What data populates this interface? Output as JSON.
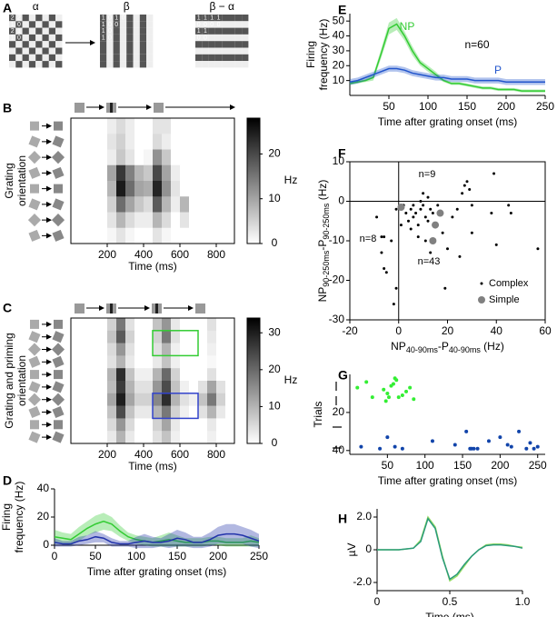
{
  "panel_letters": [
    "A",
    "B",
    "C",
    "D",
    "E",
    "F",
    "G",
    "H"
  ],
  "panel_a": {
    "grids": [
      {
        "title": "α",
        "pattern": "checker",
        "cells": [
          [
            "2",
            "2"
          ],
          [
            "1",
            "0"
          ],
          [
            "2",
            "1"
          ],
          [
            "1",
            "0"
          ]
        ]
      },
      {
        "title": "β",
        "pattern": "vertical",
        "cells": [
          [
            "1",
            "0",
            "1",
            "0"
          ],
          [
            "1",
            "0",
            "0"
          ],
          [
            "1",
            "0"
          ],
          [
            "1",
            "0"
          ]
        ]
      },
      {
        "title": "β − α",
        "pattern": "horizontal",
        "cells": [
          [
            "1",
            "1",
            "1",
            "1"
          ],
          [
            "0",
            "0",
            "0",
            "0"
          ],
          [
            "1",
            "1"
          ],
          [
            "0",
            "0"
          ]
        ]
      }
    ]
  },
  "chart_data": [
    {
      "type": "heatmap",
      "ylabel": [
        "Grating",
        "orientation"
      ],
      "xlabel": "Time (ms)",
      "xlim": [
        0,
        900
      ],
      "xticks": [
        200,
        400,
        600,
        800
      ],
      "bins": [
        0,
        50,
        100,
        150,
        200,
        250,
        300,
        350,
        400,
        450,
        500,
        550,
        600,
        650,
        700,
        750,
        800,
        850,
        900
      ],
      "z": [
        [
          0,
          0,
          0,
          0,
          2,
          4,
          2,
          0,
          0,
          3,
          3,
          0,
          0,
          0,
          0,
          0,
          0,
          0
        ],
        [
          0,
          0,
          0,
          0,
          3,
          5,
          2,
          0,
          0,
          4,
          2,
          0,
          0,
          0,
          0,
          0,
          0,
          0
        ],
        [
          0,
          0,
          0,
          0,
          2,
          6,
          3,
          0,
          1,
          12,
          6,
          0,
          0,
          0,
          0,
          0,
          0,
          0
        ],
        [
          0,
          0,
          0,
          0,
          10,
          22,
          14,
          8,
          6,
          20,
          10,
          2,
          0,
          0,
          0,
          0,
          0,
          0
        ],
        [
          0,
          0,
          0,
          0,
          8,
          25,
          16,
          10,
          9,
          24,
          12,
          3,
          0,
          0,
          0,
          0,
          0,
          0
        ],
        [
          0,
          0,
          0,
          0,
          5,
          16,
          10,
          6,
          4,
          18,
          8,
          2,
          8,
          0,
          0,
          0,
          0,
          0
        ],
        [
          0,
          0,
          0,
          0,
          3,
          8,
          4,
          2,
          2,
          8,
          4,
          0,
          3,
          0,
          0,
          0,
          0,
          0
        ],
        [
          0,
          0,
          0,
          0,
          1,
          3,
          1,
          0,
          0,
          3,
          1,
          0,
          0,
          0,
          0,
          0,
          0,
          0
        ]
      ],
      "colorbar": {
        "label": "Hz",
        "lim": [
          0,
          28
        ],
        "ticks": [
          0,
          10,
          20
        ]
      }
    },
    {
      "type": "heatmap",
      "ylabel": [
        "Grating and priming",
        "orientation"
      ],
      "xlabel": "Time (ms)",
      "xlim": [
        0,
        900
      ],
      "xticks": [
        200,
        400,
        600,
        800
      ],
      "bins": [
        0,
        50,
        100,
        150,
        200,
        250,
        300,
        350,
        400,
        450,
        500,
        550,
        600,
        650,
        700,
        750,
        800,
        850,
        900
      ],
      "z": [
        [
          0,
          0,
          0,
          0,
          6,
          18,
          4,
          0,
          0,
          8,
          14,
          3,
          0,
          0,
          0,
          4,
          0,
          0
        ],
        [
          0,
          0,
          0,
          0,
          8,
          22,
          6,
          0,
          0,
          6,
          18,
          4,
          0,
          0,
          0,
          3,
          0,
          0
        ],
        [
          0,
          0,
          0,
          0,
          5,
          14,
          4,
          0,
          0,
          4,
          10,
          2,
          0,
          0,
          0,
          2,
          0,
          0
        ],
        [
          0,
          0,
          0,
          0,
          4,
          10,
          3,
          0,
          0,
          3,
          8,
          2,
          0,
          0,
          0,
          1,
          0,
          0
        ],
        [
          0,
          0,
          0,
          0,
          10,
          28,
          8,
          2,
          2,
          10,
          20,
          6,
          0,
          0,
          0,
          4,
          0,
          0
        ],
        [
          0,
          0,
          0,
          0,
          9,
          26,
          10,
          4,
          4,
          14,
          24,
          8,
          2,
          0,
          4,
          12,
          4,
          0
        ],
        [
          0,
          0,
          0,
          0,
          12,
          30,
          12,
          6,
          6,
          16,
          28,
          10,
          4,
          2,
          8,
          18,
          6,
          0
        ],
        [
          0,
          0,
          0,
          0,
          8,
          24,
          8,
          3,
          3,
          10,
          18,
          6,
          2,
          0,
          4,
          10,
          3,
          0
        ],
        [
          0,
          0,
          0,
          0,
          5,
          14,
          5,
          0,
          0,
          6,
          12,
          3,
          0,
          0,
          0,
          3,
          0,
          0
        ],
        [
          0,
          0,
          0,
          0,
          3,
          10,
          3,
          0,
          0,
          4,
          8,
          2,
          0,
          0,
          0,
          2,
          0,
          0
        ]
      ],
      "colorbar": {
        "label": "Hz",
        "lim": [
          0,
          34
        ],
        "ticks": [
          0,
          10,
          20,
          30
        ]
      },
      "highlights": [
        {
          "color": "#33cc33",
          "xrange": [
            450,
            700
          ],
          "rows": [
            1,
            2
          ]
        },
        {
          "color": "#3344cc",
          "xrange": [
            450,
            700
          ],
          "rows": [
            6,
            7
          ]
        }
      ]
    },
    {
      "type": "line",
      "xlabel": "Time after grating onset (ms)",
      "ylabel": [
        "Firing",
        "frequency (Hz)"
      ],
      "xlim": [
        0,
        250
      ],
      "xticks": [
        0,
        50,
        100,
        150,
        200,
        250
      ],
      "ylim": [
        0,
        40
      ],
      "yticks": [
        0,
        20,
        40
      ],
      "x": [
        0,
        10,
        20,
        30,
        40,
        50,
        60,
        70,
        80,
        90,
        100,
        110,
        120,
        130,
        140,
        150,
        160,
        170,
        180,
        190,
        200,
        210,
        220,
        230,
        240,
        250
      ],
      "series": [
        {
          "color": "#33cc33",
          "values": [
            6,
            5,
            4,
            8,
            12,
            15,
            17,
            15,
            10,
            6,
            4,
            3,
            2,
            3,
            4,
            3,
            2,
            2,
            2,
            3,
            3,
            2,
            2,
            2,
            3,
            2
          ],
          "errors": [
            5,
            4,
            4,
            5,
            5,
            6,
            6,
            5,
            4,
            3,
            3,
            3,
            3,
            4,
            5,
            4,
            3,
            3,
            3,
            3,
            3,
            3,
            3,
            3,
            4,
            3
          ]
        },
        {
          "color": "#2233aa",
          "values": [
            2,
            1,
            1,
            3,
            4,
            6,
            5,
            2,
            1,
            1,
            2,
            3,
            2,
            2,
            3,
            5,
            4,
            2,
            2,
            4,
            7,
            8,
            8,
            7,
            5,
            3
          ],
          "errors": [
            3,
            2,
            2,
            3,
            3,
            4,
            3,
            3,
            2,
            2,
            4,
            5,
            4,
            3,
            5,
            6,
            5,
            4,
            4,
            5,
            6,
            7,
            7,
            6,
            6,
            5
          ]
        }
      ]
    },
    {
      "type": "line",
      "xlabel": "Time after grating onset (ms)",
      "ylabel": [
        "Firing",
        "frequency (Hz)"
      ],
      "xlim": [
        0,
        250
      ],
      "xticks": [
        50,
        100,
        150,
        200,
        250
      ],
      "ylim": [
        0,
        55
      ],
      "yticks": [
        10,
        20,
        30,
        40,
        50
      ],
      "annotations": [
        "n=60"
      ],
      "x": [
        0,
        10,
        20,
        30,
        40,
        50,
        60,
        70,
        80,
        90,
        100,
        110,
        120,
        130,
        140,
        150,
        160,
        170,
        180,
        190,
        200,
        210,
        220,
        230,
        240,
        250
      ],
      "series": [
        {
          "name": "NP",
          "color": "#33cc33",
          "values": [
            8,
            9,
            10,
            12,
            28,
            45,
            48,
            40,
            30,
            22,
            18,
            14,
            10,
            8,
            8,
            7,
            6,
            5,
            5,
            4,
            4,
            4,
            3,
            3,
            3,
            3
          ],
          "errors": [
            1,
            1,
            1,
            2,
            3,
            4,
            4,
            3,
            3,
            2,
            2,
            2,
            1,
            1,
            1,
            1,
            1,
            1,
            1,
            1,
            1,
            1,
            1,
            1,
            1,
            1
          ]
        },
        {
          "name": "P",
          "color": "#2255cc",
          "values": [
            9,
            10,
            12,
            14,
            16,
            18,
            18,
            17,
            15,
            14,
            13,
            12,
            12,
            11,
            11,
            11,
            10,
            10,
            10,
            10,
            9,
            9,
            9,
            9,
            9,
            9
          ],
          "errors": [
            2,
            2,
            2,
            2,
            2,
            2,
            2,
            2,
            2,
            2,
            2,
            2,
            2,
            2,
            2,
            2,
            2,
            2,
            2,
            2,
            2,
            2,
            2,
            2,
            2,
            2
          ]
        }
      ]
    },
    {
      "type": "scatter",
      "box": true,
      "zero_lines": true,
      "xlabel": {
        "parts": [
          "NP",
          "40-90ms",
          "-P",
          "40-90ms",
          " (Hz)"
        ]
      },
      "ylabel": {
        "parts": [
          "NP",
          "90-250ms",
          "-P",
          "90-250ms",
          " (Hz)"
        ]
      },
      "xlim": [
        -20,
        60
      ],
      "xticks": [
        -20,
        0,
        20,
        40,
        60
      ],
      "ylim": [
        -30,
        10
      ],
      "yticks": [
        -30,
        -20,
        -10,
        0,
        10
      ],
      "annotations": [
        "n=9",
        "n=8",
        "n=43"
      ],
      "legend": "lower right",
      "series": [
        {
          "name": "Complex",
          "color": "#000000",
          "x": [
            -9,
            -7,
            -7,
            -6,
            -5,
            -3,
            -2,
            -1,
            -6,
            2,
            3,
            4,
            5,
            5,
            6,
            6,
            7,
            8,
            8,
            9,
            9,
            10,
            10,
            11,
            11,
            12,
            12,
            13,
            13,
            14,
            15,
            16,
            18,
            19,
            20,
            22,
            24,
            25,
            26,
            27,
            28,
            29,
            30,
            30,
            38,
            39,
            40,
            45,
            46,
            57,
            -1,
            1
          ],
          "y": [
            -4,
            -9,
            -13,
            -17,
            -18,
            -10,
            -26,
            -22,
            -9,
            -1,
            -3,
            -5,
            -2,
            -7,
            -1,
            -4,
            -3,
            -6,
            -9,
            -2,
            0,
            2,
            -1,
            -4,
            -10,
            1,
            -5,
            -2,
            -13,
            -3,
            -6,
            -1,
            -8,
            -22,
            -12,
            -4,
            -2,
            -14,
            2,
            4,
            5,
            3,
            -8,
            -1,
            -3,
            7,
            -11,
            -1,
            -3,
            -12,
            -2,
            -6
          ]
        },
        {
          "name": "Simple",
          "color": "#808080",
          "x": [
            1,
            15,
            17,
            14
          ],
          "y": [
            -1.5,
            -6,
            -3,
            -10
          ]
        }
      ]
    },
    {
      "type": "scatter",
      "yinvert": true,
      "xlabel": "Time after grating onset (ms)",
      "ylabel": "Trials",
      "xlim": [
        0,
        260
      ],
      "xticks": [
        50,
        100,
        150,
        200,
        250
      ],
      "ylim": [
        0,
        42
      ],
      "yticks": [
        20,
        40
      ],
      "series": [
        {
          "color": "#33ee33",
          "x": [
            10,
            22,
            45,
            48,
            50,
            55,
            58,
            60,
            62,
            65,
            70,
            75,
            80,
            85,
            30,
            52
          ],
          "y": [
            7,
            4,
            8,
            14,
            10,
            6,
            5,
            2,
            3,
            12,
            11,
            9,
            7,
            13,
            12,
            12
          ]
        },
        {
          "color": "#1144aa",
          "x": [
            15,
            40,
            50,
            60,
            70,
            110,
            140,
            155,
            160,
            162,
            165,
            185,
            200,
            210,
            215,
            225,
            235,
            240,
            245,
            250,
            170
          ],
          "y": [
            38,
            39,
            33,
            38,
            39,
            35,
            37,
            30,
            39,
            39,
            39,
            35,
            33,
            37,
            38,
            30,
            39,
            36,
            39,
            38,
            39
          ]
        }
      ]
    },
    {
      "type": "line",
      "xlabel": "Time (ms)",
      "ylabel": "µV",
      "xlim": [
        0,
        1
      ],
      "xticks": [
        0,
        0.5,
        {
          "value": 1,
          "label": "1.0"
        }
      ],
      "ylim": [
        -2.5,
        2.5
      ],
      "yticks": [
        {
          "value": 2,
          "label": "2.0"
        },
        0,
        {
          "value": -2,
          "label": "-2.0"
        }
      ],
      "x": [
        0,
        0.05,
        0.1,
        0.15,
        0.2,
        0.25,
        0.3,
        0.35,
        0.4,
        0.45,
        0.5,
        0.55,
        0.6,
        0.65,
        0.7,
        0.75,
        0.8,
        0.85,
        0.9,
        0.95,
        1
      ],
      "series": [
        {
          "color": "#99dd66",
          "values": [
            0,
            0,
            0,
            0,
            0.05,
            0.1,
            0.6,
            2.0,
            1.4,
            -0.4,
            -1.9,
            -1.6,
            -1.0,
            -0.4,
            0,
            0.3,
            0.35,
            0.35,
            0.3,
            0.2,
            0.15
          ]
        },
        {
          "color": "#2a9a7a",
          "values": [
            0,
            0,
            0,
            0,
            0.05,
            0.1,
            0.5,
            1.9,
            1.3,
            -0.5,
            -1.8,
            -1.5,
            -0.9,
            -0.4,
            0,
            0.25,
            0.3,
            0.3,
            0.25,
            0.2,
            0.1
          ]
        }
      ]
    }
  ]
}
